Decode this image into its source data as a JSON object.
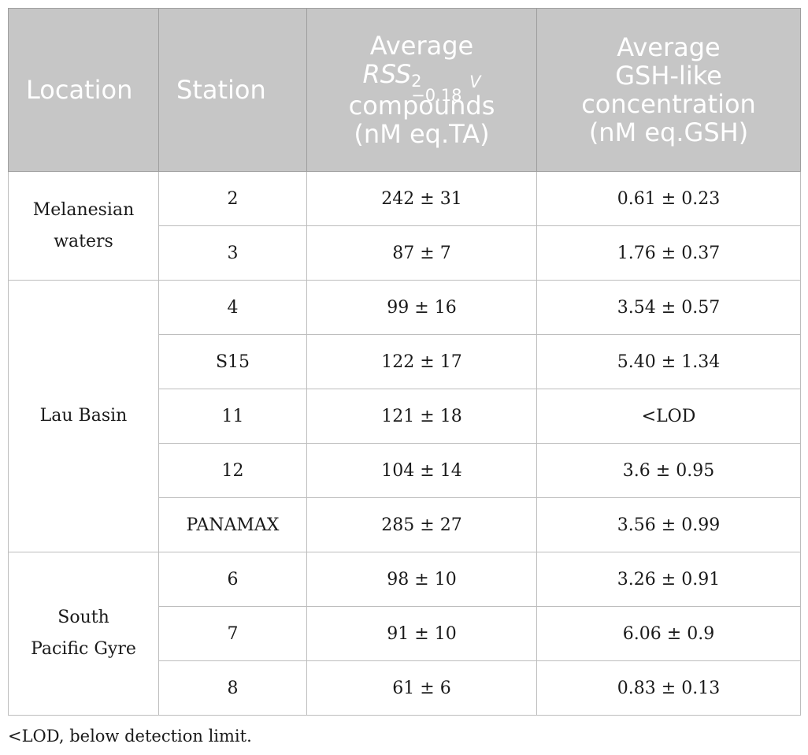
{
  "table": {
    "headers": {
      "location": "Location",
      "station": "Station",
      "rss_line1": "Average",
      "rss_symbol": "RSS",
      "rss_sup": "2",
      "rss_sub": "−0.18",
      "rss_unit_v": "V",
      "rss_line3": "compounds",
      "rss_line4": "(nM eq.TA)",
      "gsh_line1": "Average",
      "gsh_line2": "GSH-like",
      "gsh_line3": "concentration",
      "gsh_line4": "(nM eq.GSH)"
    },
    "groups": [
      {
        "location_lines": [
          "Melanesian",
          "waters"
        ],
        "rows": [
          {
            "station": "2",
            "rss": "242 ± 31",
            "gsh": "0.61 ± 0.23"
          },
          {
            "station": "3",
            "rss": "87 ± 7",
            "gsh": "1.76 ± 0.37"
          }
        ]
      },
      {
        "location_lines": [
          "Lau Basin"
        ],
        "rows": [
          {
            "station": "4",
            "rss": "99 ± 16",
            "gsh": "3.54 ± 0.57"
          },
          {
            "station": "S15",
            "rss": "122 ± 17",
            "gsh": "5.40 ± 1.34"
          },
          {
            "station": "11",
            "rss": "121 ± 18",
            "gsh": "<LOD"
          },
          {
            "station": "12",
            "rss": "104 ± 14",
            "gsh": "3.6 ± 0.95"
          },
          {
            "station": "PANAMAX",
            "rss": "285 ± 27",
            "gsh": "3.56 ± 0.99"
          }
        ]
      },
      {
        "location_lines": [
          "South",
          "Pacific Gyre"
        ],
        "rows": [
          {
            "station": "6",
            "rss": "98 ± 10",
            "gsh": "3.26 ± 0.91"
          },
          {
            "station": "7",
            "rss": "91 ± 10",
            "gsh": "6.06 ± 0.9"
          },
          {
            "station": "8",
            "rss": "61 ± 6",
            "gsh": "0.83 ± 0.13"
          }
        ]
      }
    ]
  },
  "footnote": "<LOD, below detection limit."
}
